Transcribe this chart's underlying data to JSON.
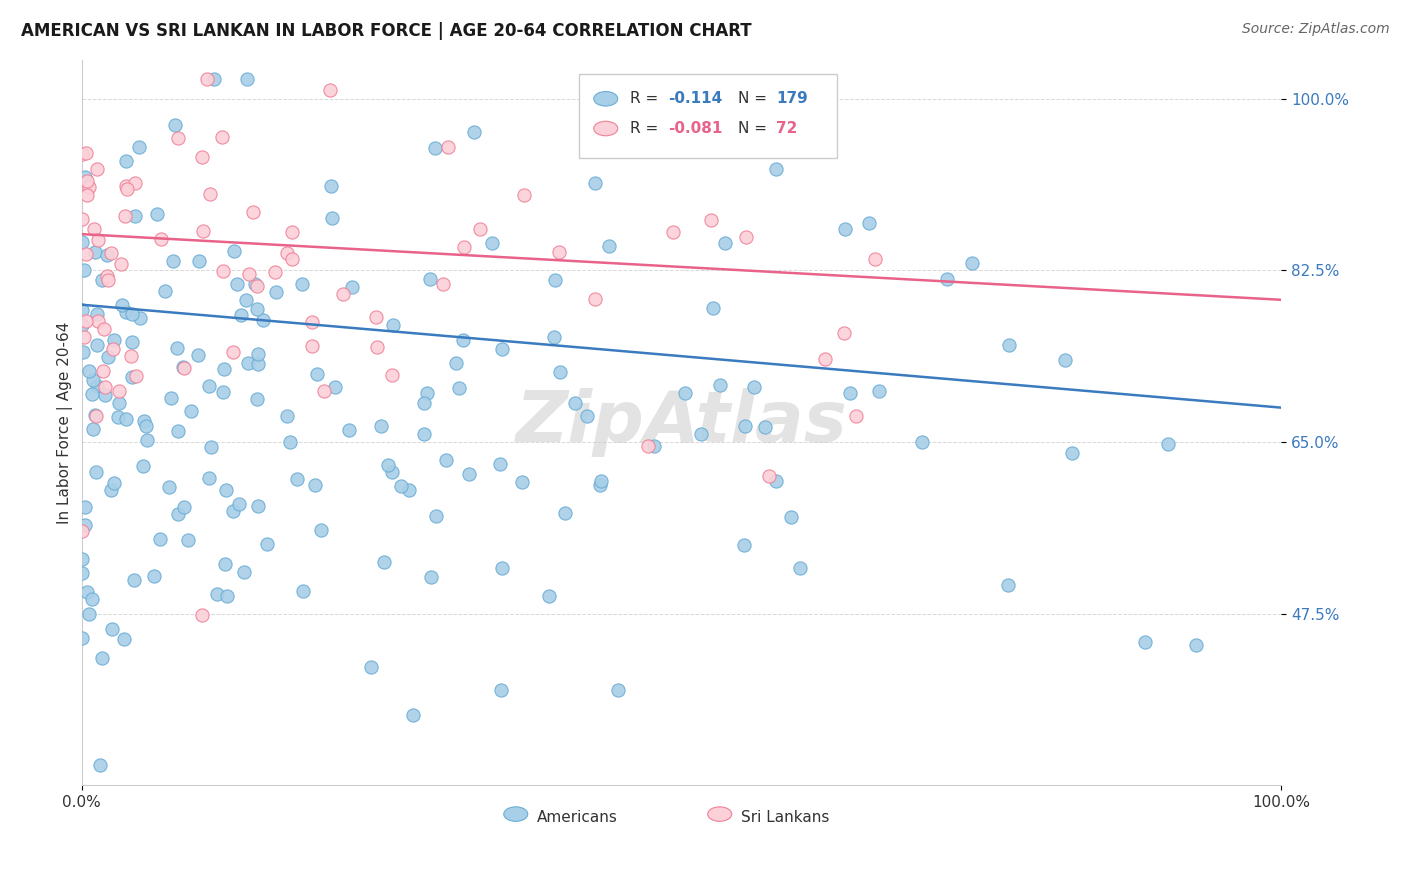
{
  "title": "AMERICAN VS SRI LANKAN IN LABOR FORCE | AGE 20-64 CORRELATION CHART",
  "source": "Source: ZipAtlas.com",
  "ylabel": "In Labor Force | Age 20-64",
  "ytick_labels": [
    "100.0%",
    "82.5%",
    "65.0%",
    "47.5%"
  ],
  "ytick_values": [
    1.0,
    0.825,
    0.65,
    0.475
  ],
  "xlim": [
    0.0,
    1.0
  ],
  "ylim": [
    0.3,
    1.04
  ],
  "american_color": "#a8cfe8",
  "american_edge_color": "#6aadd5",
  "srilanka_color": "#fcd0d8",
  "srilanka_edge_color": "#f08098",
  "trend_american_color": "#3a7abf",
  "trend_srilanka_color": "#e8628a",
  "legend_label_american": "Americans",
  "legend_label_srilanka": "Sri Lankans",
  "american_R": -0.114,
  "american_N": 179,
  "srilanka_R": -0.081,
  "srilanka_N": 72,
  "background_color": "#ffffff",
  "grid_color": "#d8d8d8",
  "watermark": "ZipAtlas",
  "trend_am_y0": 0.79,
  "trend_am_y1": 0.685,
  "trend_sl_y0": 0.862,
  "trend_sl_y1": 0.795,
  "ytick_color": "#3a7abf",
  "title_fontsize": 12,
  "source_fontsize": 10,
  "marker_size": 90
}
